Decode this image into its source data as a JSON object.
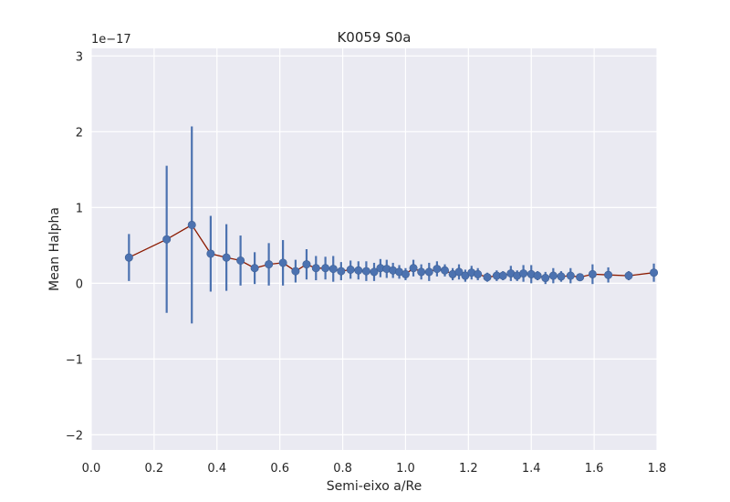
{
  "chart_data": {
    "type": "scatter",
    "title": "K0059 S0a",
    "xlabel": "Semi-eixo a/Re",
    "ylabel": "Mean Halpha",
    "y_offset_text": "1e−17",
    "xlim": [
      0.0,
      1.8
    ],
    "ylim": [
      -2.2,
      3.1
    ],
    "x_ticks": [
      0.0,
      0.2,
      0.4,
      0.6,
      0.8,
      1.0,
      1.2,
      1.4,
      1.6,
      1.8
    ],
    "x_tick_labels": [
      "0.0",
      "0.2",
      "0.4",
      "0.6",
      "0.8",
      "1.0",
      "1.2",
      "1.4",
      "1.6",
      "1.8"
    ],
    "y_ticks": [
      -2,
      -1,
      0,
      1,
      2,
      3
    ],
    "y_tick_labels": [
      "−2",
      "−1",
      "0",
      "1",
      "2",
      "3"
    ],
    "grid": true,
    "colors": {
      "background": "#eaeaf2",
      "grid": "#ffffff",
      "errorbar": "#4c72b0",
      "marker": "#4c72b0",
      "line": "#8b1a00"
    },
    "series": [
      {
        "x": [
          0.12,
          0.24,
          0.32,
          0.38,
          0.43,
          0.475,
          0.52,
          0.565,
          0.61,
          0.65,
          0.685,
          0.715,
          0.745,
          0.77,
          0.795,
          0.825,
          0.85,
          0.875,
          0.9,
          0.92,
          0.94,
          0.96,
          0.98,
          1.0,
          1.025,
          1.05,
          1.075,
          1.1,
          1.125,
          1.15,
          1.17,
          1.19,
          1.21,
          1.23,
          1.26,
          1.29,
          1.31,
          1.335,
          1.355,
          1.375,
          1.4,
          1.42,
          1.445,
          1.47,
          1.495,
          1.525,
          1.555,
          1.595,
          1.645,
          1.71,
          1.79
        ],
        "y": [
          0.34,
          0.58,
          0.77,
          0.39,
          0.34,
          0.3,
          0.2,
          0.25,
          0.27,
          0.16,
          0.25,
          0.2,
          0.2,
          0.19,
          0.16,
          0.18,
          0.17,
          0.16,
          0.15,
          0.2,
          0.19,
          0.17,
          0.15,
          0.12,
          0.2,
          0.15,
          0.15,
          0.19,
          0.17,
          0.12,
          0.15,
          0.1,
          0.14,
          0.12,
          0.08,
          0.1,
          0.1,
          0.13,
          0.1,
          0.13,
          0.12,
          0.1,
          0.07,
          0.1,
          0.09,
          0.1,
          0.08,
          0.12,
          0.11,
          0.1,
          0.14
        ],
        "yerr": [
          0.31,
          0.97,
          1.3,
          0.5,
          0.44,
          0.33,
          0.21,
          0.28,
          0.3,
          0.15,
          0.2,
          0.16,
          0.15,
          0.17,
          0.12,
          0.12,
          0.12,
          0.13,
          0.12,
          0.12,
          0.12,
          0.1,
          0.09,
          0.08,
          0.11,
          0.1,
          0.12,
          0.1,
          0.08,
          0.08,
          0.1,
          0.08,
          0.09,
          0.08,
          0.06,
          0.07,
          0.06,
          0.1,
          0.07,
          0.11,
          0.12,
          0.06,
          0.08,
          0.1,
          0.07,
          0.1,
          0.04,
          0.13,
          0.1,
          0.06,
          0.12
        ]
      }
    ]
  }
}
